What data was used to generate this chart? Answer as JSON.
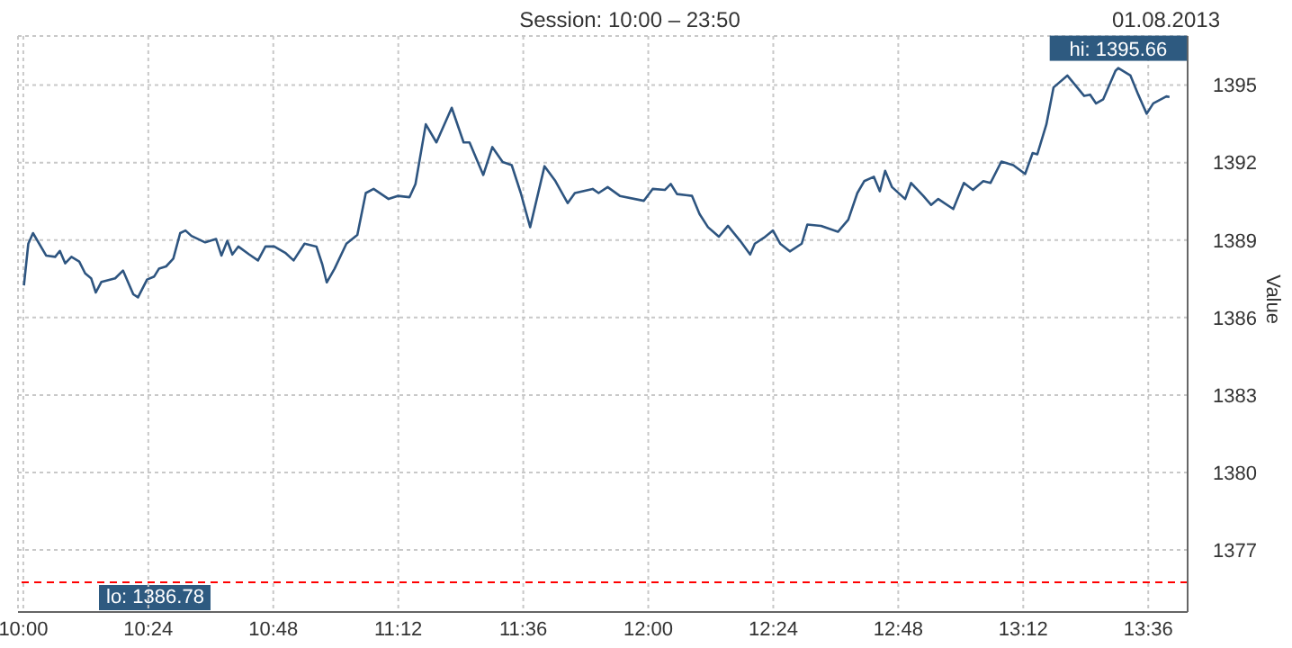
{
  "chart_data": {
    "type": "line",
    "title": "Session: 10:00 – 23:50",
    "ylabel": "Value",
    "annotations": [
      "01.08.2013",
      "lo: 1386.78",
      {
        "text": "hi: 1395.66",
        "x": 13.504,
        "y": 1395.66
      }
    ],
    "x": [
      10.002,
      10.016,
      10.031,
      10.073,
      10.102,
      10.117,
      10.134,
      10.154,
      10.179,
      10.198,
      10.217,
      10.232,
      10.25,
      10.294,
      10.319,
      10.352,
      10.367,
      10.396,
      10.419,
      10.434,
      10.457,
      10.48,
      10.502,
      10.519,
      10.538,
      10.582,
      10.617,
      10.634,
      10.653,
      10.669,
      10.688,
      10.723,
      10.751,
      10.775,
      10.803,
      10.838,
      10.865,
      10.9,
      10.938,
      10.957,
      10.971,
      10.996,
      11.034,
      11.069,
      11.096,
      11.121,
      11.169,
      11.198,
      11.236,
      11.255,
      11.288,
      11.322,
      11.371,
      11.409,
      11.428,
      11.472,
      11.501,
      11.534,
      11.563,
      11.592,
      11.622,
      11.668,
      11.703,
      11.742,
      11.765,
      11.822,
      11.841,
      11.87,
      11.909,
      11.986,
      12.014,
      12.053,
      12.072,
      12.092,
      12.14,
      12.164,
      12.191,
      12.226,
      12.255,
      12.294,
      12.326,
      12.341,
      12.37,
      12.399,
      12.422,
      12.453,
      12.491,
      12.509,
      12.553,
      12.607,
      12.64,
      12.669,
      12.691,
      12.722,
      12.741,
      12.758,
      12.78,
      12.822,
      12.841,
      12.88,
      12.905,
      12.928,
      12.976,
      13.01,
      13.039,
      13.072,
      13.095,
      13.13,
      13.168,
      13.206,
      13.23,
      13.245,
      13.274,
      13.297,
      13.341,
      13.395,
      13.414,
      13.433,
      13.456,
      13.495,
      13.504,
      13.543,
      13.568,
      13.595,
      13.616,
      13.658,
      13.668
    ],
    "series": [
      {
        "color": "#2e5580",
        "values": [
          1387.24,
          1388.86,
          1389.27,
          1388.4,
          1388.35,
          1388.58,
          1388.1,
          1388.35,
          1388.17,
          1387.71,
          1387.52,
          1386.97,
          1387.38,
          1387.52,
          1387.82,
          1386.9,
          1386.78,
          1387.47,
          1387.59,
          1387.89,
          1387.98,
          1388.28,
          1389.27,
          1389.37,
          1389.16,
          1388.91,
          1389.04,
          1388.4,
          1388.97,
          1388.44,
          1388.75,
          1388.44,
          1388.21,
          1388.75,
          1388.75,
          1388.51,
          1388.21,
          1388.86,
          1388.75,
          1388.05,
          1387.36,
          1387.89,
          1388.86,
          1389.2,
          1390.82,
          1390.98,
          1390.59,
          1390.71,
          1390.66,
          1391.17,
          1393.48,
          1392.78,
          1394.12,
          1392.78,
          1392.78,
          1391.52,
          1392.6,
          1392.02,
          1391.9,
          1390.82,
          1389.5,
          1391.86,
          1391.28,
          1390.43,
          1390.82,
          1390.98,
          1390.82,
          1391.05,
          1390.71,
          1390.52,
          1390.98,
          1390.94,
          1391.17,
          1390.78,
          1390.71,
          1390.01,
          1389.5,
          1389.13,
          1389.55,
          1388.97,
          1388.44,
          1388.86,
          1389.09,
          1389.37,
          1388.86,
          1388.56,
          1388.86,
          1389.6,
          1389.55,
          1389.32,
          1389.79,
          1390.82,
          1391.28,
          1391.45,
          1390.89,
          1391.68,
          1391.05,
          1390.59,
          1391.21,
          1390.71,
          1390.36,
          1390.59,
          1390.2,
          1391.21,
          1390.94,
          1391.28,
          1391.21,
          1392.04,
          1391.9,
          1391.56,
          1392.37,
          1392.32,
          1393.48,
          1394.91,
          1395.37,
          1394.58,
          1394.63,
          1394.29,
          1394.45,
          1395.55,
          1395.66,
          1395.37,
          1394.63,
          1393.89,
          1394.29,
          1394.56,
          1394.54
        ]
      }
    ],
    "xlim": [
      9.983,
      13.726
    ],
    "xticks": [
      {
        "value": 10,
        "label": "10:00"
      },
      {
        "value": 10.4,
        "label": "10:24"
      },
      {
        "value": 10.8,
        "label": "10:48"
      },
      {
        "value": 11.2,
        "label": "11:12"
      },
      {
        "value": 11.6,
        "label": "11:36"
      },
      {
        "value": 12,
        "label": "12:00"
      },
      {
        "value": 12.4,
        "label": "12:24"
      },
      {
        "value": 12.8,
        "label": "12:48"
      },
      {
        "value": 13.2,
        "label": "13:12"
      },
      {
        "value": 13.6,
        "label": "13:36"
      }
    ],
    "ylim": [
      1374.6,
      1396.9
    ],
    "yticks": [
      1377,
      1380,
      1383,
      1386,
      1389,
      1392,
      1395
    ],
    "ref_lines": [
      {
        "axis": "y",
        "value": 1375.75,
        "color": "#ff0000",
        "line_style": "dashed"
      }
    ],
    "grid": true,
    "marker": "none",
    "line_style": "solid"
  }
}
